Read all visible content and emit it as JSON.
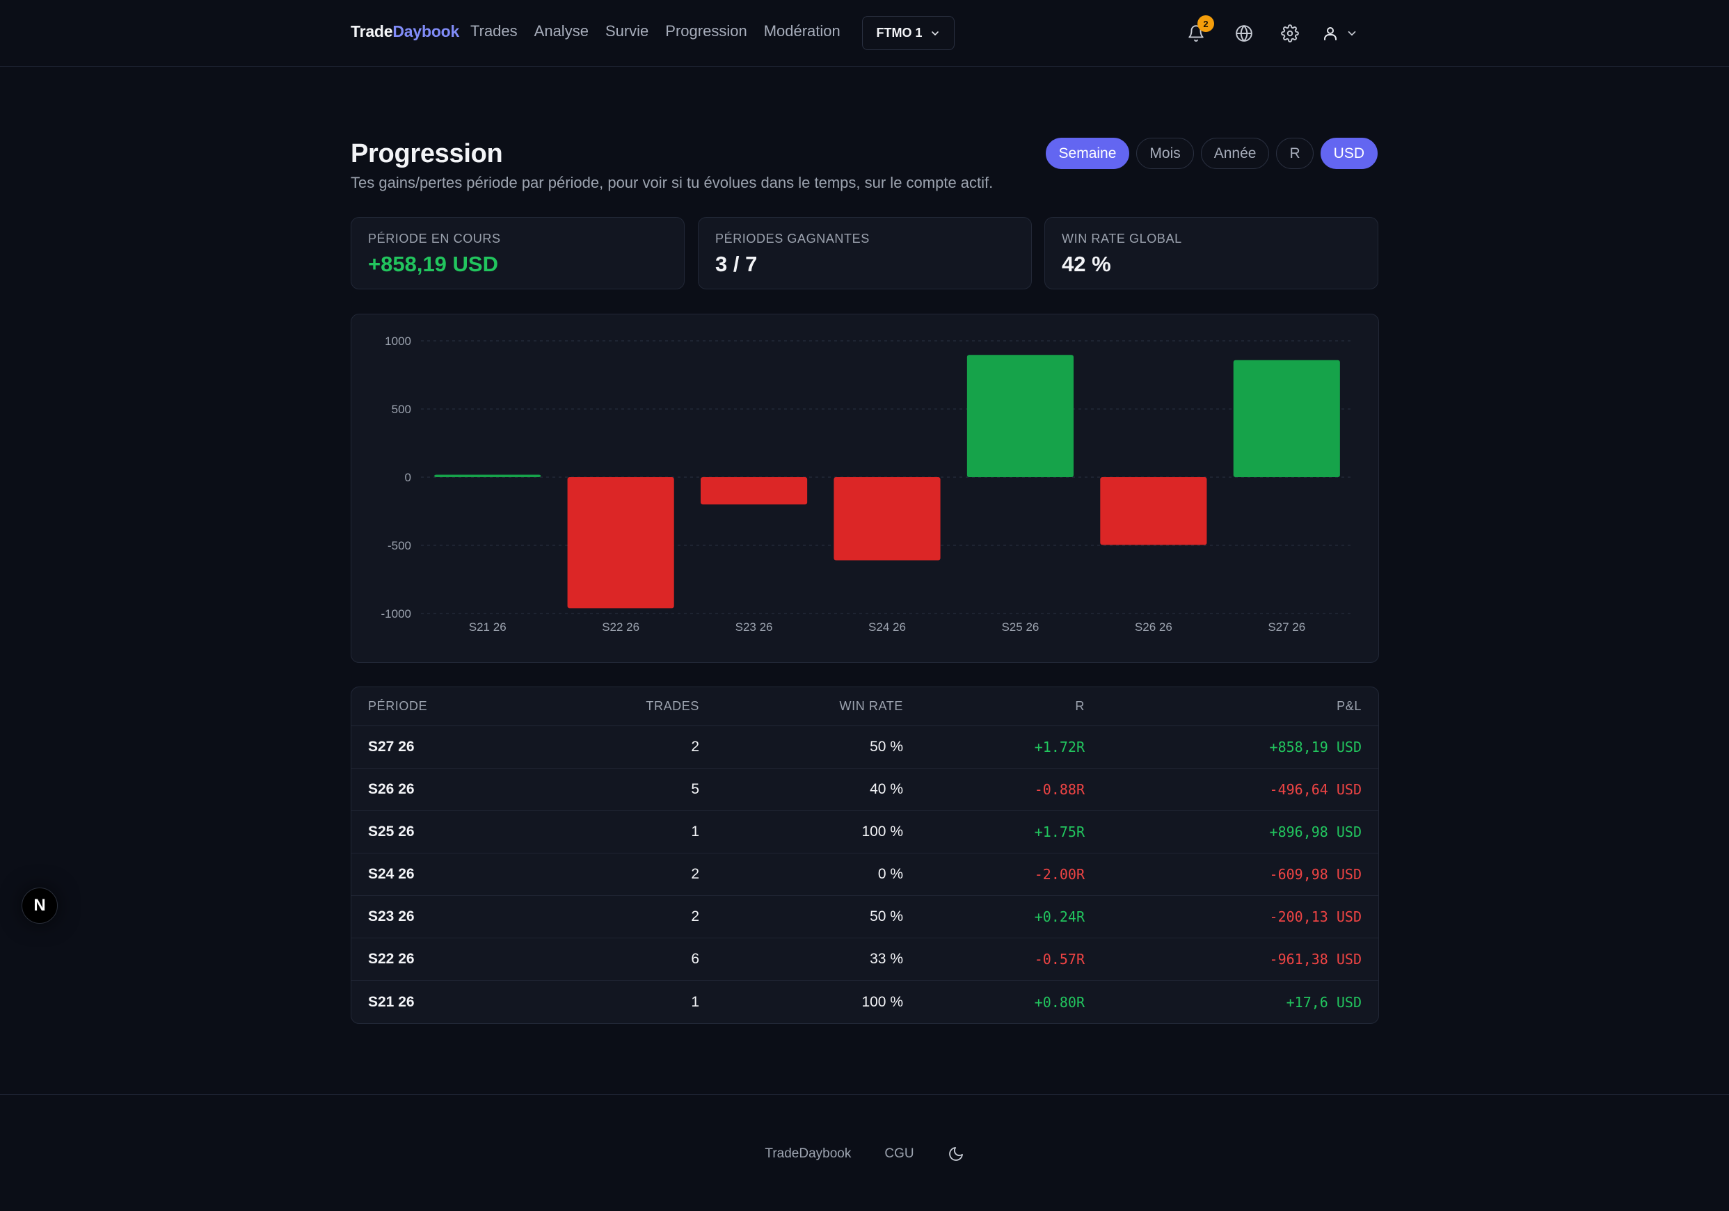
{
  "header": {
    "brand_part1": "Trade",
    "brand_part2": "Daybook",
    "nav": [
      "Trades",
      "Analyse",
      "Survie",
      "Progression",
      "Modération"
    ],
    "account": "FTMO 1",
    "notifications_count": "2"
  },
  "page": {
    "title": "Progression",
    "subtitle": "Tes gains/pertes période par période, pour voir si tu évolues dans le temps, sur le compte actif.",
    "period_toggles": [
      {
        "label": "Semaine",
        "active": true
      },
      {
        "label": "Mois",
        "active": false
      },
      {
        "label": "Année",
        "active": false
      }
    ],
    "unit_toggles": [
      {
        "label": "R",
        "active": false
      },
      {
        "label": "USD",
        "active": true
      }
    ]
  },
  "stats": [
    {
      "label": "PÉRIODE EN COURS",
      "value": "+858,19 USD"
    },
    {
      "label": "PÉRIODES GAGNANTES",
      "value": "3 / 7"
    },
    {
      "label": "WIN RATE GLOBAL",
      "value": "42 %"
    }
  ],
  "chart_data": {
    "type": "bar",
    "categories": [
      "S21 26",
      "S22 26",
      "S23 26",
      "S24 26",
      "S25 26",
      "S26 26",
      "S27 26"
    ],
    "values": [
      17.6,
      -961.38,
      -200.13,
      -609.98,
      896.98,
      -496.64,
      858.19
    ],
    "ylim": [
      -1000,
      1000
    ],
    "yticks": [
      "1000",
      "500",
      "0",
      "-500",
      "-1000"
    ],
    "grid": true,
    "colors": {
      "positive": "#16a34a",
      "negative": "#dc2626"
    }
  },
  "table": {
    "headers": [
      "PÉRIODE",
      "TRADES",
      "WIN RATE",
      "R",
      "P&L"
    ],
    "rows": [
      {
        "period": "S27 26",
        "trades": "2",
        "winrate": "50 %",
        "r": "+1.72R",
        "pnl": "+858,19 USD"
      },
      {
        "period": "S26 26",
        "trades": "5",
        "winrate": "40 %",
        "r": "-0.88R",
        "pnl": "-496,64 USD"
      },
      {
        "period": "S25 26",
        "trades": "1",
        "winrate": "100 %",
        "r": "+1.75R",
        "pnl": "+896,98 USD"
      },
      {
        "period": "S24 26",
        "trades": "2",
        "winrate": "0 %",
        "r": "-2.00R",
        "pnl": "-609,98 USD"
      },
      {
        "period": "S23 26",
        "trades": "2",
        "winrate": "50 %",
        "r": "+0.24R",
        "pnl": "-200,13 USD"
      },
      {
        "period": "S22 26",
        "trades": "6",
        "winrate": "33 %",
        "r": "-0.57R",
        "pnl": "-961,38 USD"
      },
      {
        "period": "S21 26",
        "trades": "1",
        "winrate": "100 %",
        "r": "+0.80R",
        "pnl": "+17,6 USD"
      }
    ]
  },
  "footer": {
    "brand": "TradeDaybook",
    "cgu": "CGU"
  },
  "floating_badge": "N"
}
